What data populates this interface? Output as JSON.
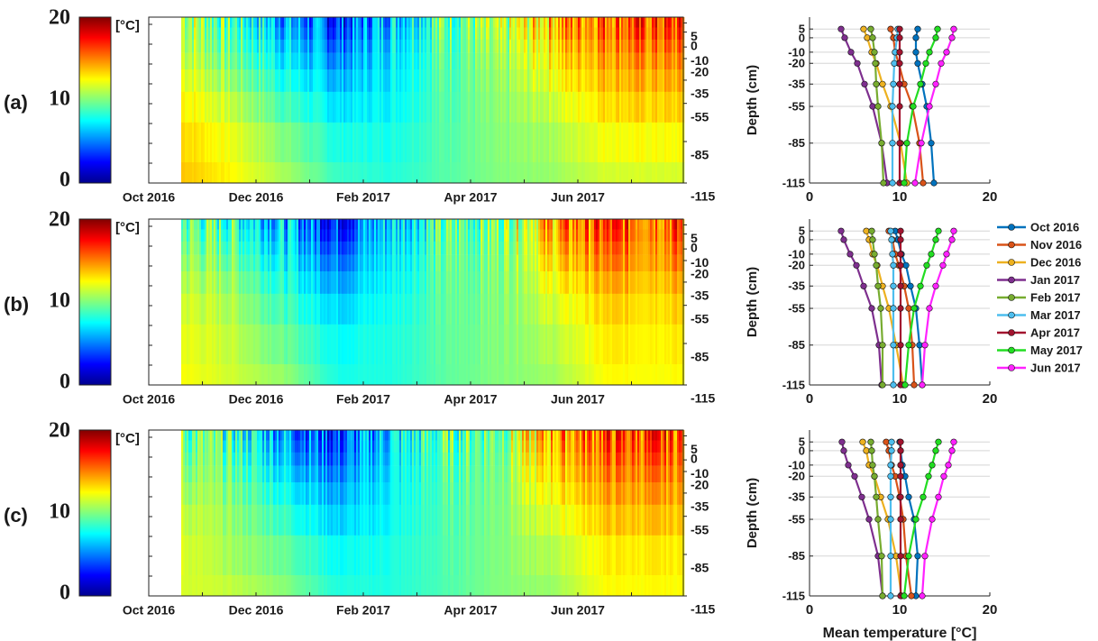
{
  "colorbar": {
    "min_label": "0",
    "mid_label": "10",
    "max_label": "20",
    "unit_label": "[°C]",
    "range": [
      0,
      20
    ],
    "colormap": "jet"
  },
  "chart_data": [
    {
      "type": "heatmap",
      "panel_label": "(a)",
      "x_tick_labels": [
        "Oct 2016",
        "Dec 2016",
        "Feb 2017",
        "Apr 2017",
        "Jun 2017"
      ],
      "y_tick_labels": [
        "5",
        "0",
        "-10",
        "-20",
        "-35",
        "-55",
        "-85",
        "-115"
      ],
      "depths_cm": [
        5,
        0,
        -10,
        -20,
        -35,
        -55,
        -85,
        -115
      ],
      "months": [
        "Oct 2016",
        "Nov 2016",
        "Dec 2016",
        "Jan 2017",
        "Feb 2017",
        "Mar 2017",
        "Apr 2017",
        "May 2017",
        "Jun 2017"
      ],
      "monthly_mean_temperature_c": [
        [
          12.0,
          11.8,
          11.8,
          12.0,
          12.5,
          13.0,
          13.5,
          13.8
        ],
        [
          9.0,
          9.3,
          9.5,
          9.9,
          10.5,
          11.4,
          12.2,
          12.6
        ],
        [
          6.0,
          6.4,
          6.9,
          7.4,
          8.1,
          9.0,
          10.1,
          10.8
        ],
        [
          3.5,
          3.9,
          4.6,
          5.3,
          6.1,
          7.0,
          8.0,
          8.6
        ],
        [
          6.8,
          7.0,
          7.2,
          7.3,
          7.4,
          7.6,
          8.0,
          8.2
        ],
        [
          9.8,
          9.7,
          9.5,
          9.4,
          9.3,
          9.2,
          9.2,
          9.2
        ],
        [
          10.0,
          10.0,
          10.0,
          10.0,
          10.0,
          10.0,
          10.0,
          10.0
        ],
        [
          14.2,
          14.0,
          13.3,
          12.9,
          12.3,
          11.5,
          10.8,
          10.5
        ],
        [
          16.0,
          15.8,
          15.2,
          14.6,
          14.0,
          13.3,
          12.4,
          11.7
        ]
      ]
    },
    {
      "type": "heatmap",
      "panel_label": "(b)",
      "x_tick_labels": [
        "Oct 2016",
        "Dec 2016",
        "Feb 2017",
        "Apr 2017",
        "Jun 2017"
      ],
      "y_tick_labels": [
        "5",
        "0",
        "-10",
        "-20",
        "-35",
        "-55",
        "-85",
        "-115"
      ],
      "depths_cm": [
        5,
        0,
        -10,
        -20,
        -35,
        -55,
        -85,
        -115
      ],
      "months": [
        "Oct 2016",
        "Nov 2016",
        "Dec 2016",
        "Jan 2017",
        "Feb 2017",
        "Mar 2017",
        "Apr 2017",
        "May 2017",
        "Jun 2017"
      ],
      "monthly_mean_temperature_c": [
        [
          9.5,
          9.8,
          10.2,
          10.7,
          11.2,
          11.8,
          12.2,
          12.5
        ],
        [
          8.8,
          9.2,
          9.5,
          9.9,
          10.5,
          11.0,
          11.4,
          11.6
        ],
        [
          6.3,
          6.6,
          7.0,
          7.5,
          8.1,
          8.8,
          9.6,
          10.4
        ],
        [
          3.5,
          3.8,
          4.5,
          5.2,
          6.0,
          6.9,
          7.7,
          8.0
        ],
        [
          6.9,
          7.0,
          7.2,
          7.4,
          7.6,
          7.9,
          8.1,
          8.1
        ],
        [
          9.0,
          9.1,
          9.2,
          9.3,
          9.3,
          9.3,
          9.3,
          9.3
        ],
        [
          10.1,
          10.1,
          10.1,
          10.1,
          10.1,
          10.1,
          10.1,
          10.1
        ],
        [
          14.3,
          14.0,
          13.5,
          13.0,
          12.3,
          11.6,
          11.0,
          10.6
        ],
        [
          16.0,
          15.8,
          15.2,
          14.8,
          14.0,
          13.3,
          12.8,
          12.5
        ]
      ]
    },
    {
      "type": "heatmap",
      "panel_label": "(c)",
      "x_tick_labels": [
        "Oct 2016",
        "Dec 2016",
        "Feb 2017",
        "Apr 2017",
        "Jun 2017"
      ],
      "y_tick_labels": [
        "5",
        "0",
        "-10",
        "-20",
        "-35",
        "-55",
        "-85",
        "-115"
      ],
      "depths_cm": [
        5,
        0,
        -10,
        -20,
        -35,
        -55,
        -85,
        -115
      ],
      "months": [
        "Oct 2016",
        "Nov 2016",
        "Dec 2016",
        "Jan 2017",
        "Feb 2017",
        "Mar 2017",
        "Apr 2017",
        "May 2017",
        "Jun 2017"
      ],
      "monthly_mean_temperature_c": [
        [
          10.0,
          10.1,
          10.3,
          10.6,
          11.0,
          11.6,
          12.0,
          11.8
        ],
        [
          8.5,
          8.8,
          9.1,
          9.5,
          10.0,
          10.4,
          10.7,
          11.3
        ],
        [
          5.9,
          6.3,
          6.6,
          7.2,
          7.9,
          8.7,
          9.6,
          10.2
        ],
        [
          3.6,
          3.8,
          4.3,
          5.0,
          5.8,
          6.6,
          7.6,
          8.1
        ],
        [
          6.8,
          6.9,
          7.0,
          7.2,
          7.4,
          7.6,
          8.0,
          8.1
        ],
        [
          9.1,
          9.1,
          9.0,
          9.0,
          9.0,
          9.0,
          9.0,
          9.0
        ],
        [
          10.1,
          10.1,
          10.1,
          10.1,
          10.1,
          10.1,
          10.1,
          10.1
        ],
        [
          14.3,
          14.0,
          13.6,
          13.2,
          12.6,
          11.8,
          11.0,
          10.5
        ],
        [
          16.0,
          15.8,
          15.4,
          14.9,
          14.3,
          13.6,
          12.8,
          12.5
        ]
      ]
    },
    {
      "type": "line",
      "panel_label": "(a)",
      "xlim": [
        0,
        20
      ],
      "x_tick_labels": [
        "0",
        "10",
        "20"
      ],
      "ylabel": "Depth (cm)",
      "y_tick_labels": [
        "5",
        "0",
        "-10",
        "-20",
        "-35",
        "-55",
        "-85",
        "-115"
      ],
      "y": [
        5,
        0,
        -10,
        -20,
        -35,
        -55,
        -85,
        -115
      ],
      "series": [
        {
          "name": "Oct 2016",
          "color": "#0072bd",
          "values": [
            12.0,
            11.8,
            11.8,
            12.0,
            12.5,
            13.0,
            13.5,
            13.8
          ]
        },
        {
          "name": "Nov 2016",
          "color": "#d95319",
          "values": [
            9.0,
            9.3,
            9.5,
            9.9,
            10.5,
            11.4,
            12.2,
            12.6
          ]
        },
        {
          "name": "Dec 2016",
          "color": "#edb120",
          "values": [
            6.0,
            6.4,
            6.9,
            7.4,
            8.1,
            9.0,
            10.1,
            10.8
          ]
        },
        {
          "name": "Jan 2017",
          "color": "#7e2f8e",
          "values": [
            3.5,
            3.9,
            4.6,
            5.3,
            6.1,
            7.0,
            8.0,
            8.6
          ]
        },
        {
          "name": "Feb 2017",
          "color": "#77ac30",
          "values": [
            6.8,
            7.0,
            7.2,
            7.3,
            7.4,
            7.6,
            8.0,
            8.2
          ]
        },
        {
          "name": "Mar 2017",
          "color": "#4dbeee",
          "values": [
            9.8,
            9.7,
            9.5,
            9.4,
            9.3,
            9.2,
            9.2,
            9.2
          ]
        },
        {
          "name": "Apr 2017",
          "color": "#a2142f",
          "values": [
            10.0,
            10.0,
            10.0,
            10.0,
            10.0,
            10.0,
            10.0,
            10.0
          ]
        },
        {
          "name": "May 2017",
          "color": "#22dd22",
          "values": [
            14.2,
            14.0,
            13.3,
            12.9,
            12.3,
            11.5,
            10.8,
            10.5
          ]
        },
        {
          "name": "Jun 2017",
          "color": "#ff22ff",
          "values": [
            16.0,
            15.8,
            15.2,
            14.6,
            14.0,
            13.3,
            12.4,
            11.7
          ]
        }
      ]
    },
    {
      "type": "line",
      "panel_label": "(b)",
      "xlim": [
        0,
        20
      ],
      "x_tick_labels": [
        "0",
        "10",
        "20"
      ],
      "ylabel": "Depth (cm)",
      "y_tick_labels": [
        "5",
        "0",
        "-10",
        "-20",
        "-35",
        "-55",
        "-85",
        "-115"
      ],
      "y": [
        5,
        0,
        -10,
        -20,
        -35,
        -55,
        -85,
        -115
      ],
      "legend": {
        "placement": "right",
        "entries": [
          "Oct 2016",
          "Nov 2016",
          "Dec 2016",
          "Jan 2017",
          "Feb 2017",
          "Mar 2017",
          "Apr 2017",
          "May 2017",
          "Jun 2017"
        ]
      },
      "series": [
        {
          "name": "Oct 2016",
          "color": "#0072bd",
          "values": [
            9.5,
            9.8,
            10.2,
            10.7,
            11.2,
            11.8,
            12.2,
            12.5
          ]
        },
        {
          "name": "Nov 2016",
          "color": "#d95319",
          "values": [
            8.8,
            9.2,
            9.5,
            9.9,
            10.5,
            11.0,
            11.4,
            11.6
          ]
        },
        {
          "name": "Dec 2016",
          "color": "#edb120",
          "values": [
            6.3,
            6.6,
            7.0,
            7.5,
            8.1,
            8.8,
            9.6,
            10.4
          ]
        },
        {
          "name": "Jan 2017",
          "color": "#7e2f8e",
          "values": [
            3.5,
            3.8,
            4.5,
            5.2,
            6.0,
            6.9,
            7.7,
            8.0
          ]
        },
        {
          "name": "Feb 2017",
          "color": "#77ac30",
          "values": [
            6.9,
            7.0,
            7.2,
            7.4,
            7.6,
            7.9,
            8.1,
            8.1
          ]
        },
        {
          "name": "Mar 2017",
          "color": "#4dbeee",
          "values": [
            9.0,
            9.1,
            9.2,
            9.3,
            9.3,
            9.3,
            9.3,
            9.3
          ]
        },
        {
          "name": "Apr 2017",
          "color": "#a2142f",
          "values": [
            10.1,
            10.1,
            10.1,
            10.1,
            10.1,
            10.1,
            10.1,
            10.1
          ]
        },
        {
          "name": "May 2017",
          "color": "#22dd22",
          "values": [
            14.3,
            14.0,
            13.5,
            13.0,
            12.3,
            11.6,
            11.0,
            10.6
          ]
        },
        {
          "name": "Jun 2017",
          "color": "#ff22ff",
          "values": [
            16.0,
            15.8,
            15.2,
            14.8,
            14.0,
            13.3,
            12.8,
            12.5
          ]
        }
      ]
    },
    {
      "type": "line",
      "panel_label": "(c)",
      "xlim": [
        0,
        20
      ],
      "x_tick_labels": [
        "0",
        "10",
        "20"
      ],
      "xlabel": "Mean temperature [°C]",
      "ylabel": "Depth (cm)",
      "y_tick_labels": [
        "5",
        "0",
        "-10",
        "-20",
        "-35",
        "-55",
        "-85",
        "-115"
      ],
      "y": [
        5,
        0,
        -10,
        -20,
        -35,
        -55,
        -85,
        -115
      ],
      "series": [
        {
          "name": "Oct 2016",
          "color": "#0072bd",
          "values": [
            10.0,
            10.1,
            10.3,
            10.6,
            11.0,
            11.6,
            12.0,
            11.8
          ]
        },
        {
          "name": "Nov 2016",
          "color": "#d95319",
          "values": [
            8.5,
            8.8,
            9.1,
            9.5,
            10.0,
            10.4,
            10.7,
            11.3
          ]
        },
        {
          "name": "Dec 2016",
          "color": "#edb120",
          "values": [
            5.9,
            6.3,
            6.6,
            7.2,
            7.9,
            8.7,
            9.6,
            10.2
          ]
        },
        {
          "name": "Jan 2017",
          "color": "#7e2f8e",
          "values": [
            3.6,
            3.8,
            4.3,
            5.0,
            5.8,
            6.6,
            7.6,
            8.1
          ]
        },
        {
          "name": "Feb 2017",
          "color": "#77ac30",
          "values": [
            6.8,
            6.9,
            7.0,
            7.2,
            7.4,
            7.6,
            8.0,
            8.1
          ]
        },
        {
          "name": "Mar 2017",
          "color": "#4dbeee",
          "values": [
            9.1,
            9.1,
            9.0,
            9.0,
            9.0,
            9.0,
            9.0,
            9.0
          ]
        },
        {
          "name": "Apr 2017",
          "color": "#a2142f",
          "values": [
            10.1,
            10.1,
            10.1,
            10.1,
            10.1,
            10.1,
            10.1,
            10.1
          ]
        },
        {
          "name": "May 2017",
          "color": "#22dd22",
          "values": [
            14.3,
            14.0,
            13.6,
            13.2,
            12.6,
            11.8,
            11.0,
            10.5
          ]
        },
        {
          "name": "Jun 2017",
          "color": "#ff22ff",
          "values": [
            16.0,
            15.8,
            15.4,
            14.9,
            14.3,
            13.6,
            12.8,
            12.5
          ]
        }
      ]
    }
  ]
}
